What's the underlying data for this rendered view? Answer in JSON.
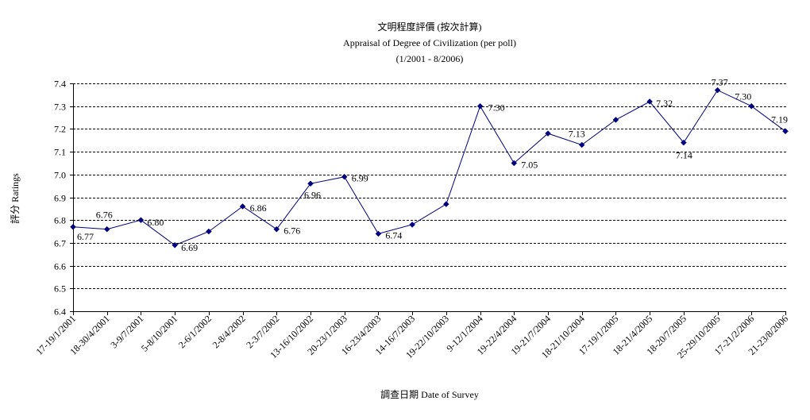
{
  "chart_data": {
    "type": "line",
    "title_lines": [
      "文明程度評價 (按次計算)",
      "Appraisal of Degree of Civilization (per poll)",
      "(1/2001 - 8/2006)"
    ],
    "xlabel": "調查日期 Date of Survey",
    "ylabel": "評分 Ratings",
    "ylim": [
      6.4,
      7.4
    ],
    "yticks": [
      "6.4",
      "6.5",
      "6.6",
      "6.7",
      "6.8",
      "6.9",
      "7.0",
      "7.1",
      "7.2",
      "7.3",
      "7.4"
    ],
    "grid": true,
    "categories": [
      "17-19/1/2001",
      "18-30/4/2001",
      "3-9/7/2001",
      "5-8/10/2001",
      "2-6/1/2002",
      "2-8/4/2002",
      "2-3/7/2002",
      "13-16/10/2002",
      "20-23/1/2003",
      "16-23/4/2003",
      "14-16/7/2003",
      "19-22/10/2003",
      "9-12/1/2004",
      "19-22/4/2004",
      "19-21/7/2004",
      "18-21/10/2004",
      "17-19/1/2005",
      "18-21/4/2005",
      "18-20/7/2005",
      "25-29/10/2005",
      "17-21/2/2006",
      "21-23/8/2006"
    ],
    "series": [
      {
        "values": [
          6.77,
          6.76,
          6.8,
          6.69,
          6.75,
          6.86,
          6.76,
          6.96,
          6.99,
          6.74,
          6.78,
          6.87,
          7.3,
          7.05,
          7.18,
          7.13,
          7.24,
          7.32,
          7.14,
          7.37,
          7.3,
          7.19
        ],
        "data_labels": [
          "6.77",
          "6.76",
          "6.80",
          "6.69",
          null,
          "6.86",
          "6.76",
          "6.96",
          "6.99",
          "6.74",
          null,
          null,
          "7.30",
          "7.05",
          null,
          "7.13",
          null,
          "7.32",
          "7.14",
          "7.37",
          "7.30",
          "7.19"
        ],
        "marker": "diamond-icon"
      }
    ]
  },
  "colors": {
    "line": "#000080",
    "marker": "#000080",
    "grid": "#000000",
    "axis": "#000000",
    "text": "#000000",
    "background": "#ffffff"
  }
}
